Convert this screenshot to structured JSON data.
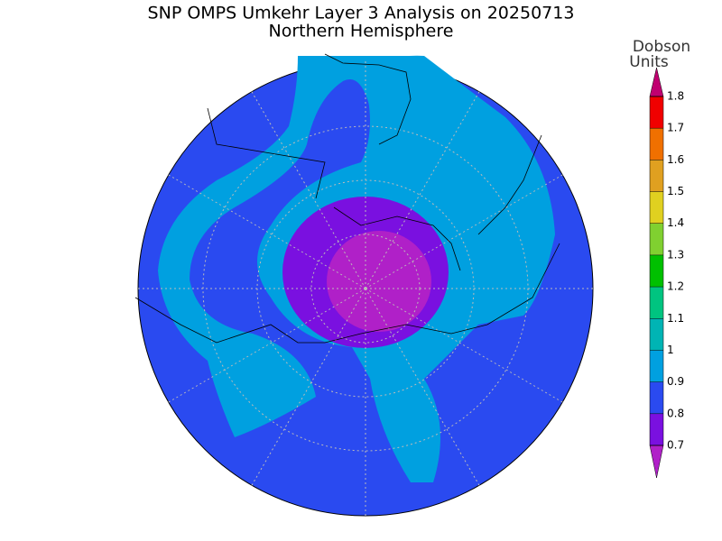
{
  "title": "SNP OMPS Umkehr Layer 3 Analysis on 20250713",
  "subtitle": "Northern Hemisphere",
  "colorbar": {
    "label_lines": [
      "Dobson",
      "Units"
    ],
    "ticks": [
      0.7,
      0.8,
      0.9,
      1,
      1.1,
      1.2,
      1.3,
      1.4,
      1.5,
      1.6,
      1.7,
      1.8
    ],
    "colors": [
      "#7a10e0",
      "#2a4af0",
      "#00a0e0",
      "#00b4b4",
      "#00c480",
      "#00c000",
      "#80d030",
      "#e0d020",
      "#e0a020",
      "#f07000",
      "#f00000"
    ],
    "under_color": "#b020c8",
    "over_color": "#c00070"
  }
}
